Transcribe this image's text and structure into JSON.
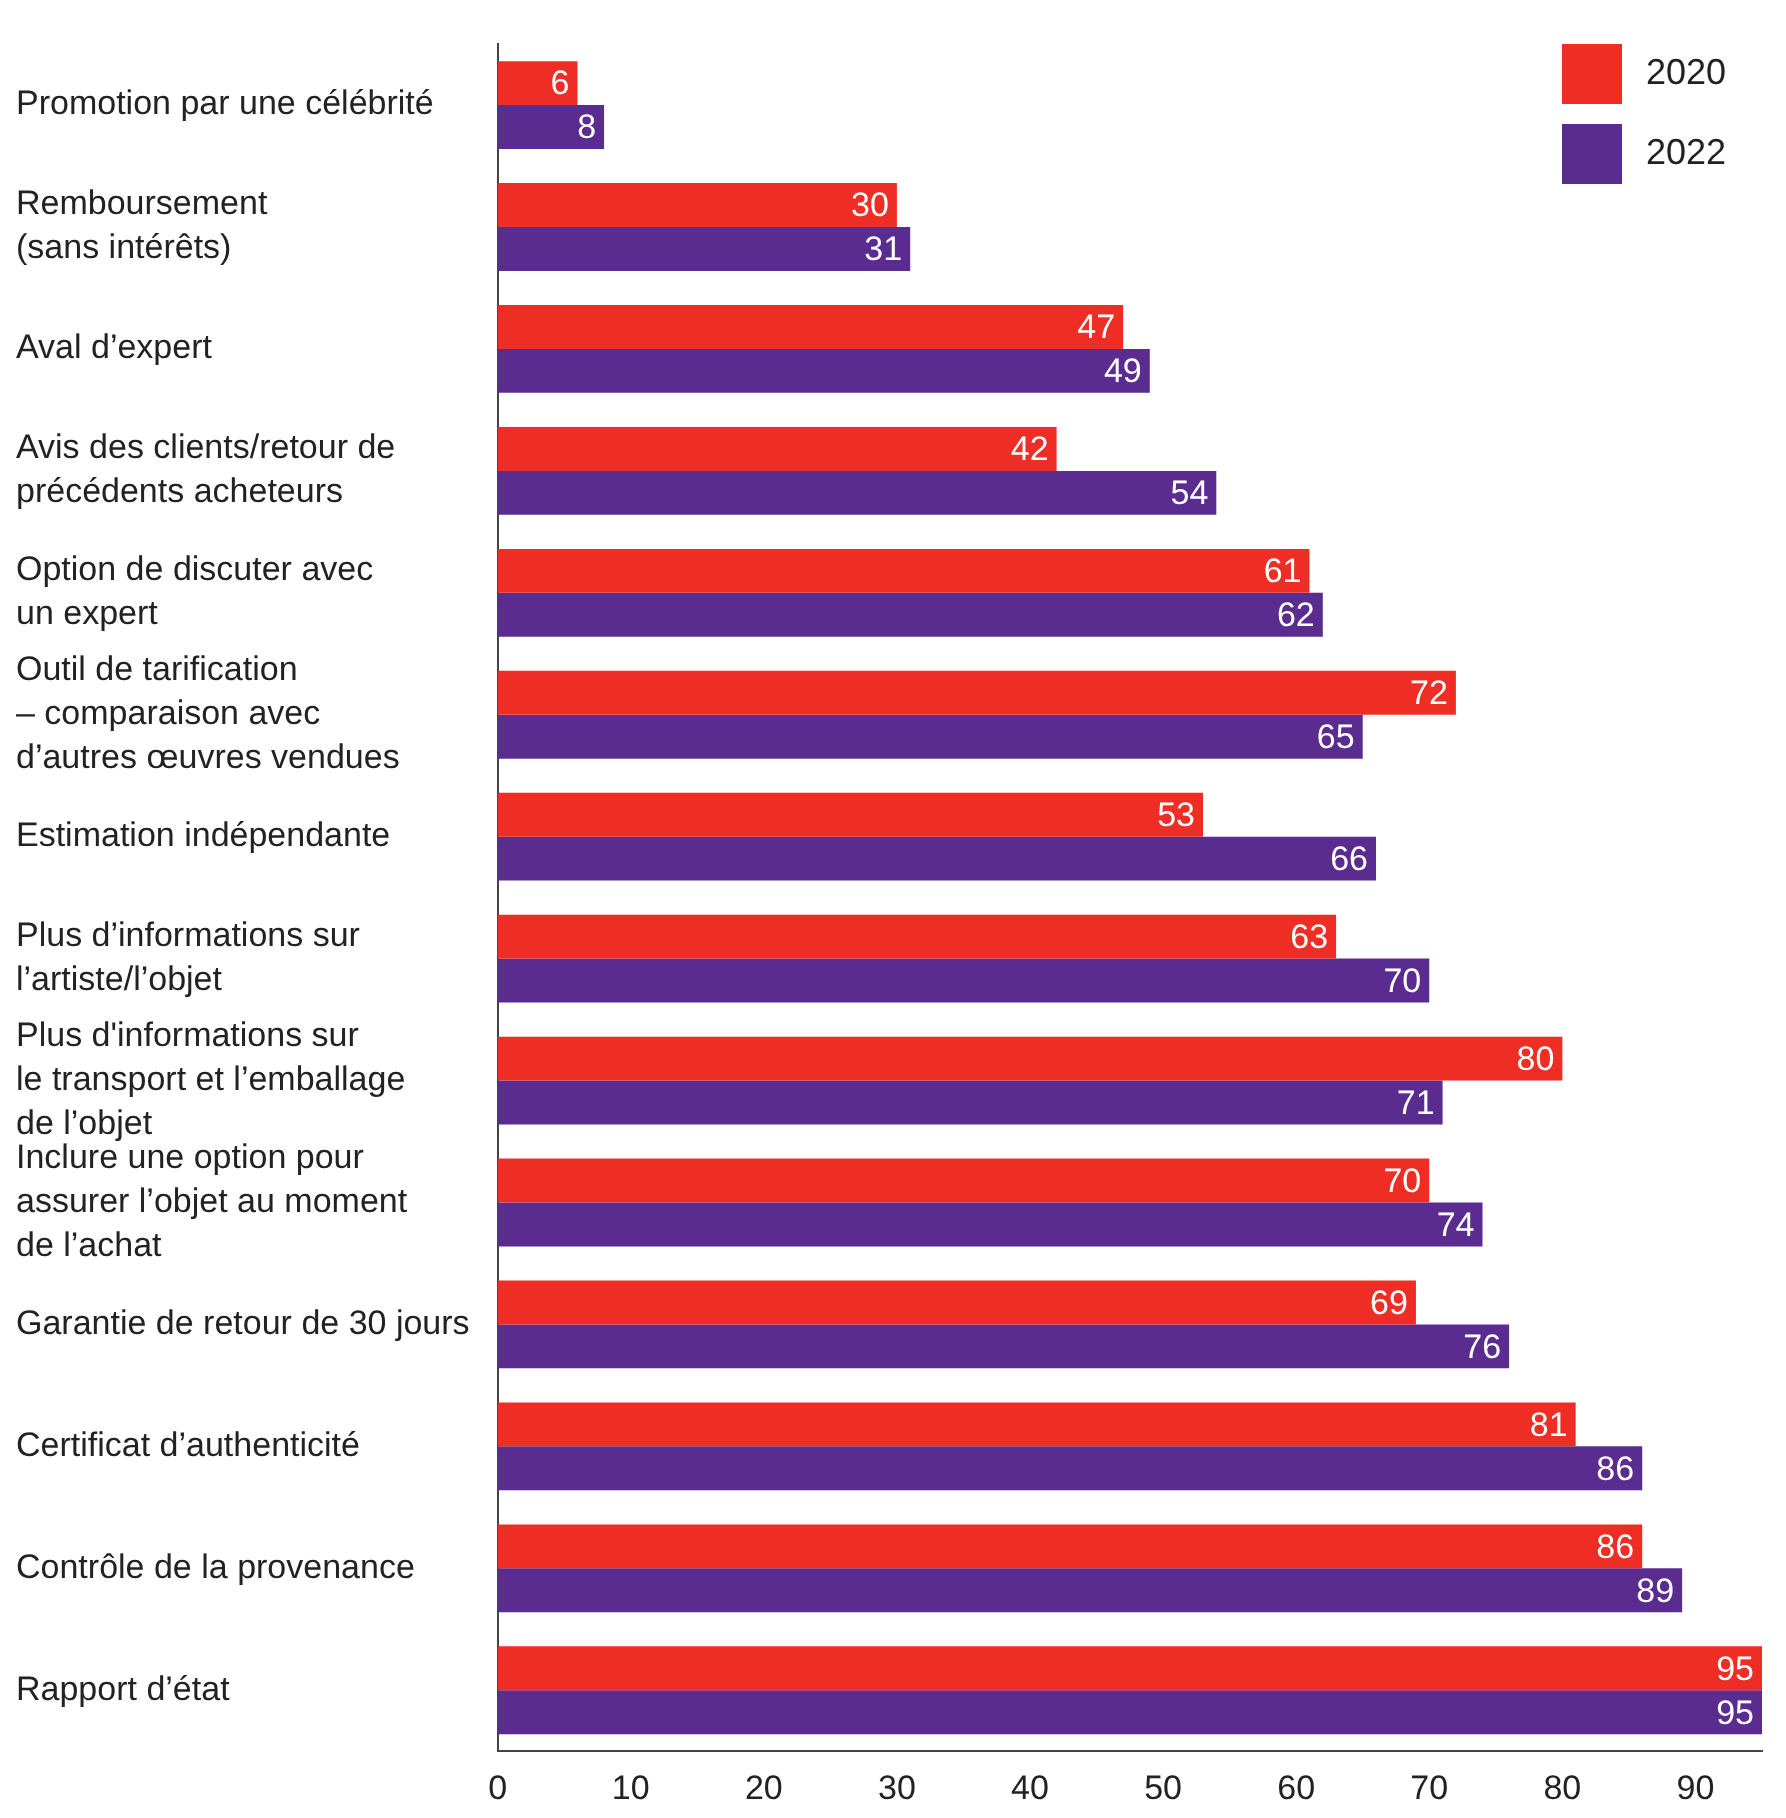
{
  "chart_data": {
    "type": "bar",
    "orientation": "horizontal",
    "categories": [
      "Promotion par une célébrité",
      "Remboursement\n(sans intérêts)",
      "Aval d’expert",
      "Avis des clients/retour de\nprécédents acheteurs",
      "Option de discuter avec\nun expert",
      "Outil de tarification\n– comparaison avec\nd’autres œuvres vendues",
      "Estimation indépendante",
      "Plus d’informations sur\nl’artiste/l’objet",
      "Plus d'informations sur\nle transport et l’emballage\nde l’objet",
      "Inclure une option pour\nassurer l’objet au moment\nde l’achat",
      "Garantie de retour de 30 jours",
      "Certificat d’authenticité",
      "Contrôle de la provenance",
      "Rapport d’état"
    ],
    "series": [
      {
        "name": "2020",
        "color": "#ee2e24",
        "values": [
          6,
          30,
          47,
          42,
          61,
          72,
          53,
          63,
          80,
          70,
          69,
          81,
          86,
          95
        ]
      },
      {
        "name": "2022",
        "color": "#5b2c8f",
        "values": [
          8,
          31,
          49,
          54,
          62,
          65,
          66,
          70,
          71,
          74,
          76,
          86,
          89,
          95
        ]
      }
    ],
    "xlim": [
      0,
      95
    ],
    "xticks": [
      0,
      10,
      20,
      30,
      40,
      50,
      60,
      70,
      80,
      90
    ],
    "grid": false,
    "legend": "top right",
    "data_labels": true
  }
}
